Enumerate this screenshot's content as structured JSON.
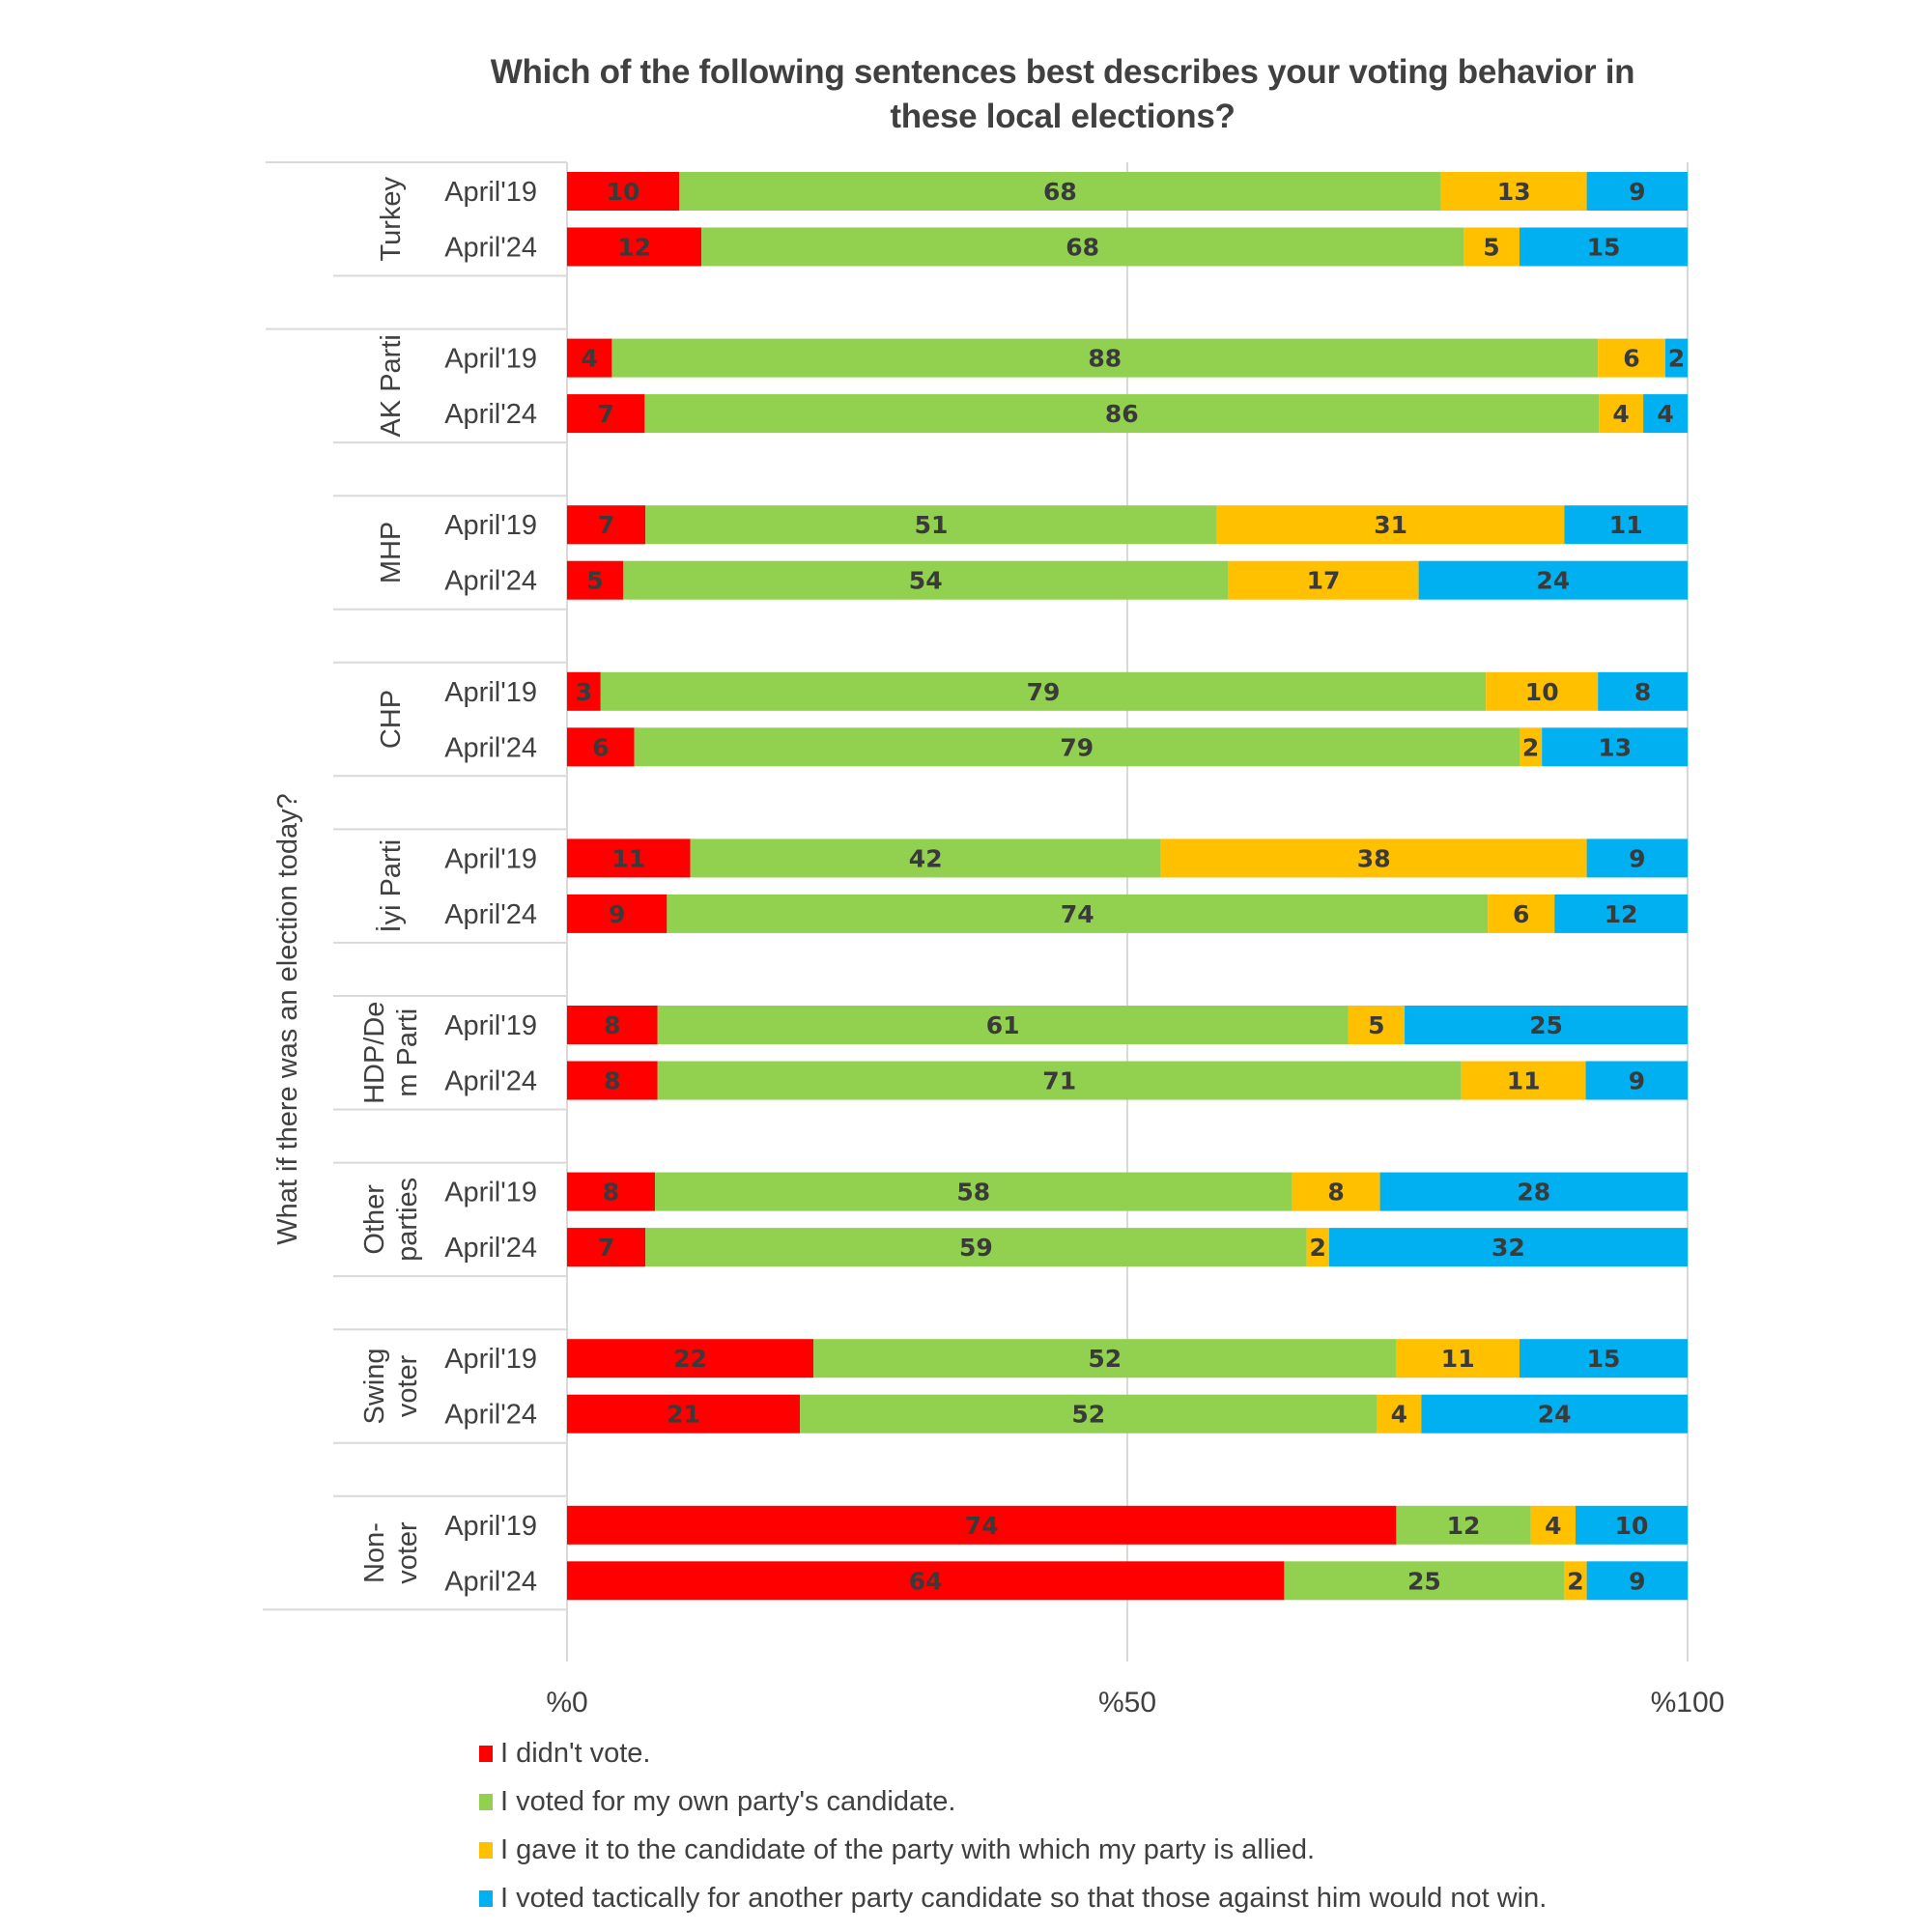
{
  "chart_data": {
    "type": "bar",
    "orientation": "horizontal",
    "stacked": true,
    "title": "Which of the following sentences best describes your voting behavior in these local elections?",
    "title_lines": [
      "Which of the following sentences best describes your voting behavior in",
      "these local elections?"
    ],
    "ylabel": "What if there was an election today?",
    "xlabel": "",
    "xlim": [
      0,
      100
    ],
    "x_ticks": [
      "%0",
      "%50",
      "%100"
    ],
    "x_tick_values": [
      0,
      50,
      100
    ],
    "grid": true,
    "legend_position": "bottom",
    "series": [
      {
        "name": "I didn't vote.",
        "color": "#FF0000"
      },
      {
        "name": "I voted for my own party's candidate.",
        "color": "#92D050"
      },
      {
        "name": "I gave it to the candidate of the party with which my party is allied.",
        "color": "#FFC000"
      },
      {
        "name": "I voted tactically for another party candidate so that those against him would not win.",
        "color": "#00B0F0"
      }
    ],
    "groups": [
      {
        "name": "Turkey",
        "label_lines": [
          "Turkey"
        ],
        "rows": [
          {
            "period": "April'19",
            "values": [
              10,
              68,
              13,
              9
            ]
          },
          {
            "period": "April'24",
            "values": [
              12,
              68,
              5,
              15
            ]
          }
        ]
      },
      {
        "name": "AK Parti",
        "label_lines": [
          "AK Parti"
        ],
        "rows": [
          {
            "period": "April'19",
            "values": [
              4,
              88,
              6,
              2
            ]
          },
          {
            "period": "April'24",
            "values": [
              7,
              86,
              4,
              4
            ]
          }
        ]
      },
      {
        "name": "MHP",
        "label_lines": [
          "MHP"
        ],
        "rows": [
          {
            "period": "April'19",
            "values": [
              7,
              51,
              31,
              11
            ]
          },
          {
            "period": "April'24",
            "values": [
              5,
              54,
              17,
              24
            ]
          }
        ]
      },
      {
        "name": "CHP",
        "label_lines": [
          "CHP"
        ],
        "rows": [
          {
            "period": "April'19",
            "values": [
              3,
              79,
              10,
              8
            ]
          },
          {
            "period": "April'24",
            "values": [
              6,
              79,
              2,
              13
            ]
          }
        ]
      },
      {
        "name": "İyi Parti",
        "label_lines": [
          "İyi Parti"
        ],
        "rows": [
          {
            "period": "April'19",
            "values": [
              11,
              42,
              38,
              9
            ]
          },
          {
            "period": "April'24",
            "values": [
              9,
              74,
              6,
              12
            ]
          }
        ]
      },
      {
        "name": "HDP/Dem Parti",
        "label_lines": [
          "HDP/De",
          "m Parti"
        ],
        "rows": [
          {
            "period": "April'19",
            "values": [
              8,
              61,
              5,
              25
            ]
          },
          {
            "period": "April'24",
            "values": [
              8,
              71,
              11,
              9
            ]
          }
        ]
      },
      {
        "name": "Other parties",
        "label_lines": [
          "Other",
          "parties"
        ],
        "rows": [
          {
            "period": "April'19",
            "values": [
              8,
              58,
              8,
              28
            ]
          },
          {
            "period": "April'24",
            "values": [
              7,
              59,
              2,
              32
            ]
          }
        ]
      },
      {
        "name": "Swing voter",
        "label_lines": [
          "Swing",
          "voter"
        ],
        "rows": [
          {
            "period": "April'19",
            "values": [
              22,
              52,
              11,
              15
            ]
          },
          {
            "period": "April'24",
            "values": [
              21,
              52,
              4,
              24
            ]
          }
        ]
      },
      {
        "name": "Non-voter",
        "label_lines": [
          "Non-",
          "voter"
        ],
        "rows": [
          {
            "period": "April'19",
            "values": [
              74,
              12,
              4,
              10
            ]
          },
          {
            "period": "April'24",
            "values": [
              64,
              25,
              2,
              9
            ]
          }
        ]
      }
    ]
  },
  "style": {
    "text_color": "#404040",
    "label_color": "#3a3a3a",
    "grid_color": "#d9d9d9"
  }
}
